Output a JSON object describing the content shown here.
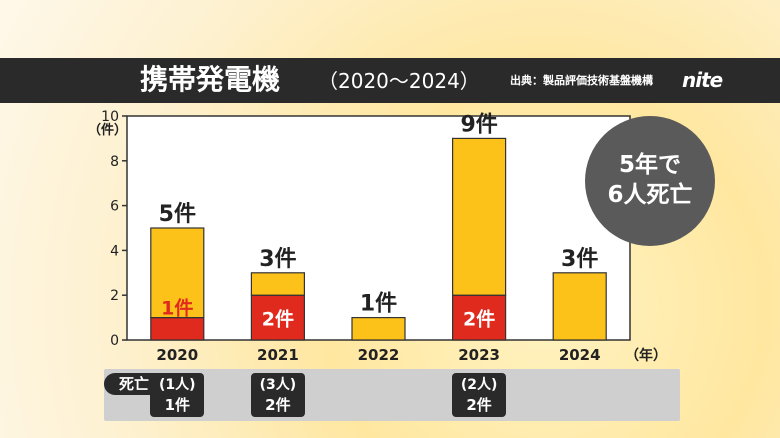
{
  "header": {
    "title": "携帯発電機",
    "subtitle": "（2020～2024）",
    "source": "出典：製品評価技術基盤機構",
    "logo_text": "nite"
  },
  "chart_data": {
    "type": "bar",
    "stacked": true,
    "title": "携帯発電機（2020～2024）",
    "ylabel": "（件）",
    "xlabel": "（年）",
    "ylim": [
      0,
      10
    ],
    "yticks": [
      0,
      2,
      4,
      6,
      8,
      10
    ],
    "categories": [
      "2020",
      "2021",
      "2022",
      "2023",
      "2024"
    ],
    "series": [
      {
        "values": [
          1,
          2,
          0,
          2,
          0
        ],
        "color": "#e02a1e"
      },
      {
        "values": [
          4,
          1,
          1,
          7,
          3
        ],
        "color": "#fcc21a"
      }
    ],
    "totals": [
      5,
      3,
      1,
      9,
      3
    ],
    "total_labels": [
      "5件",
      "3件",
      "1件",
      "9件",
      "3件"
    ],
    "inner_labels": [
      "1件",
      "2件",
      "",
      "2件",
      ""
    ],
    "grid": false
  },
  "deaths": {
    "label": "死亡",
    "entries": [
      {
        "year": "2020",
        "people": "(1人)",
        "cases": "1件"
      },
      {
        "year": "2021",
        "people": "(3人)",
        "cases": "2件"
      },
      {
        "year": "2022",
        "people": "",
        "cases": ""
      },
      {
        "year": "2023",
        "people": "(2人)",
        "cases": "2件"
      },
      {
        "year": "2024",
        "people": "",
        "cases": ""
      }
    ]
  },
  "callout": {
    "line1": "5年で",
    "line2": "6人死亡"
  },
  "colors": {
    "bar_total": "#fcc21a",
    "bar_death": "#e02a1e",
    "header_bg": "#2a2a2a"
  }
}
